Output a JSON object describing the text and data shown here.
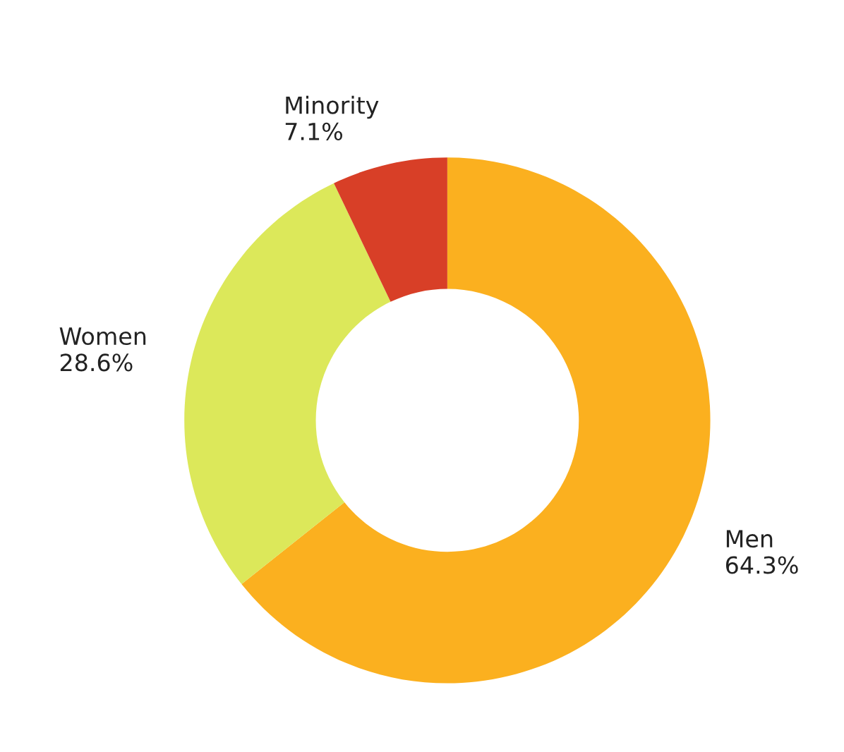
{
  "chart_data": {
    "type": "donut",
    "categories": [
      "Men",
      "Women",
      "Minority"
    ],
    "values": [
      64.3,
      28.6,
      7.1
    ],
    "colors": [
      "#fbb01f",
      "#dce85a",
      "#d83f27"
    ],
    "value_labels": [
      "64.3%",
      "28.6%",
      "7.1%"
    ],
    "legend": false
  }
}
